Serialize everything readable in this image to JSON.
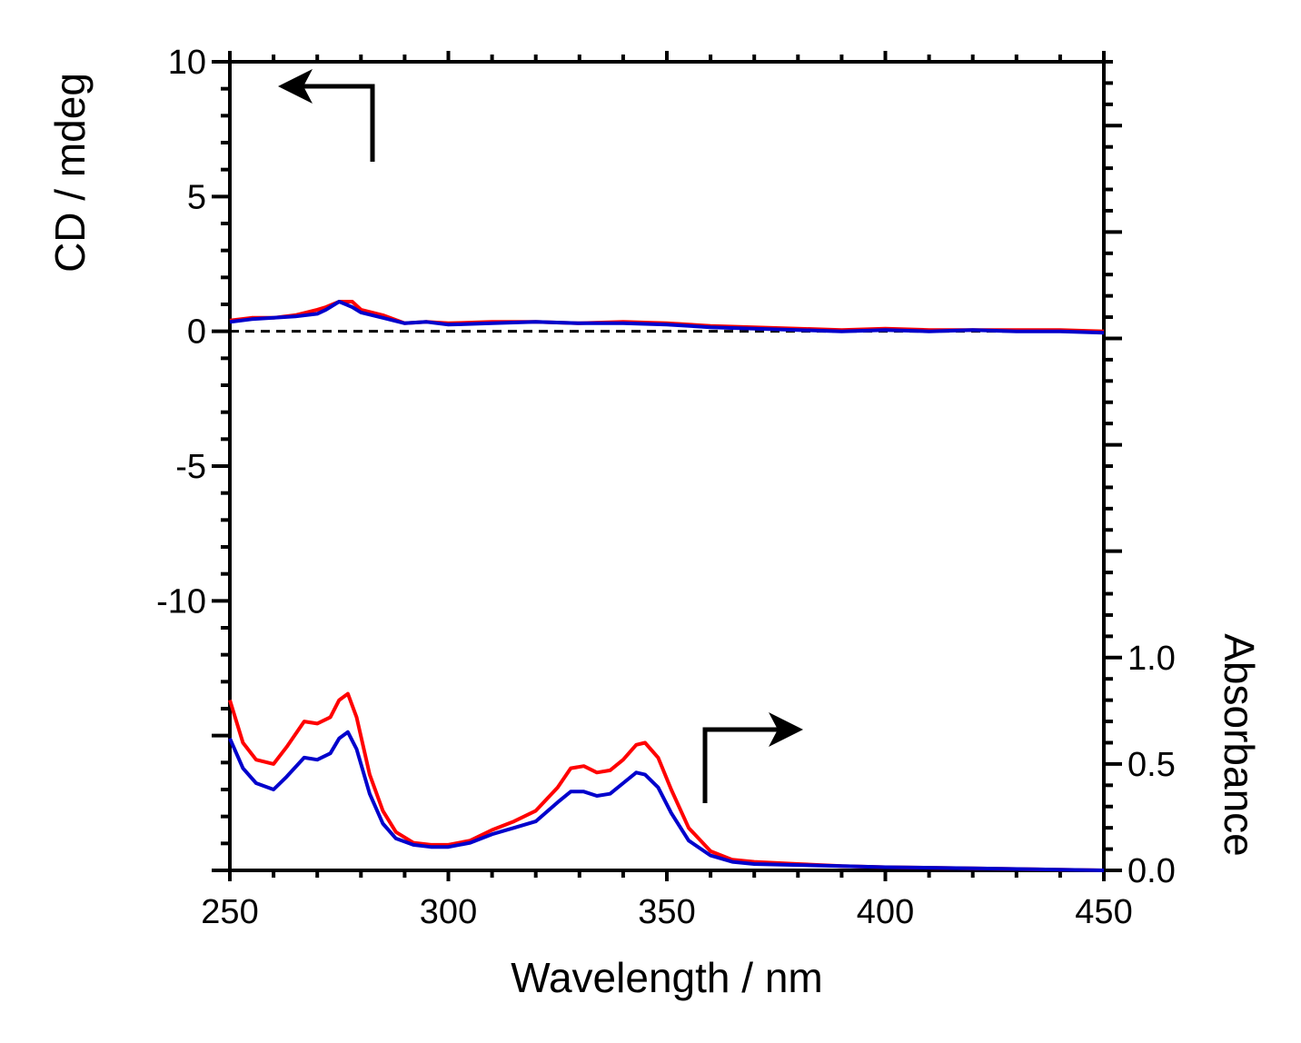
{
  "chart_data": {
    "type": "line",
    "title": "",
    "xlabel": "Wavelength / nm",
    "ylabel_left": "CD / mdeg",
    "ylabel_right": "Absorbance",
    "xlim": [
      250,
      450
    ],
    "xticks": [
      250,
      300,
      350,
      400,
      450
    ],
    "xtick_labels": [
      "250",
      "300",
      "350",
      "400",
      "450"
    ],
    "ylim_left": [
      -20,
      10
    ],
    "yticks_left": [
      10,
      5,
      0,
      -5,
      -10
    ],
    "ytick_labels_left": [
      "10",
      "5",
      "0",
      "-5",
      "-10"
    ],
    "ylim_right": [
      0.0,
      3.8
    ],
    "yticks_right": [
      1.0,
      0.5,
      0.0
    ],
    "ytick_labels_right": [
      "1.0",
      "0.5",
      "0.0"
    ],
    "zero_line": {
      "axis": "left",
      "value": 0,
      "style": "dashed"
    },
    "cd_series": [
      {
        "name": "CD red",
        "color": "#ff0000",
        "x": [
          250,
          255,
          260,
          265,
          270,
          272,
          275,
          278,
          280,
          285,
          290,
          295,
          300,
          310,
          320,
          330,
          340,
          350,
          360,
          370,
          380,
          390,
          400,
          410,
          420,
          430,
          440,
          450
        ],
        "y": [
          0.4,
          0.5,
          0.5,
          0.6,
          0.8,
          0.9,
          1.1,
          1.1,
          0.8,
          0.6,
          0.3,
          0.35,
          0.3,
          0.35,
          0.35,
          0.3,
          0.35,
          0.3,
          0.2,
          0.15,
          0.1,
          0.05,
          0.1,
          0.05,
          0.05,
          0.05,
          0.05,
          0.0
        ]
      },
      {
        "name": "CD blue",
        "color": "#0000cc",
        "x": [
          250,
          255,
          260,
          265,
          270,
          272,
          275,
          278,
          280,
          285,
          290,
          295,
          300,
          310,
          320,
          330,
          340,
          350,
          360,
          370,
          380,
          390,
          400,
          410,
          420,
          430,
          440,
          450
        ],
        "y": [
          0.35,
          0.45,
          0.5,
          0.55,
          0.65,
          0.8,
          1.1,
          0.9,
          0.7,
          0.5,
          0.3,
          0.35,
          0.25,
          0.3,
          0.35,
          0.3,
          0.3,
          0.25,
          0.15,
          0.1,
          0.05,
          0.0,
          0.05,
          0.0,
          0.05,
          0.0,
          0.0,
          -0.05
        ]
      }
    ],
    "abs_series": [
      {
        "name": "Absorbance red",
        "color": "#ff0000",
        "x": [
          250,
          253,
          256,
          260,
          263,
          267,
          270,
          273,
          275,
          277,
          279,
          282,
          285,
          288,
          292,
          296,
          300,
          305,
          310,
          315,
          320,
          325,
          328,
          331,
          334,
          337,
          340,
          343,
          345,
          348,
          351,
          355,
          360,
          365,
          370,
          380,
          390,
          400,
          420,
          450
        ],
        "y": [
          0.8,
          0.6,
          0.52,
          0.5,
          0.58,
          0.7,
          0.69,
          0.72,
          0.8,
          0.83,
          0.72,
          0.45,
          0.28,
          0.18,
          0.13,
          0.12,
          0.12,
          0.14,
          0.19,
          0.23,
          0.28,
          0.39,
          0.48,
          0.49,
          0.46,
          0.47,
          0.52,
          0.59,
          0.6,
          0.53,
          0.38,
          0.2,
          0.09,
          0.05,
          0.04,
          0.03,
          0.02,
          0.015,
          0.01,
          0.0
        ]
      },
      {
        "name": "Absorbance blue",
        "color": "#0000cc",
        "x": [
          250,
          253,
          256,
          260,
          263,
          267,
          270,
          273,
          275,
          277,
          279,
          282,
          285,
          288,
          292,
          296,
          300,
          305,
          310,
          315,
          320,
          325,
          328,
          331,
          334,
          337,
          340,
          343,
          345,
          348,
          351,
          355,
          360,
          365,
          370,
          380,
          390,
          400,
          420,
          450
        ],
        "y": [
          0.62,
          0.48,
          0.41,
          0.38,
          0.44,
          0.53,
          0.52,
          0.55,
          0.62,
          0.65,
          0.57,
          0.36,
          0.22,
          0.15,
          0.12,
          0.11,
          0.11,
          0.13,
          0.17,
          0.2,
          0.23,
          0.32,
          0.37,
          0.37,
          0.35,
          0.36,
          0.41,
          0.46,
          0.45,
          0.39,
          0.27,
          0.14,
          0.07,
          0.04,
          0.03,
          0.025,
          0.02,
          0.015,
          0.01,
          0.0
        ]
      }
    ],
    "annotations": [
      {
        "label": "arrow pointing to left axis (CD)",
        "direction": "left"
      },
      {
        "label": "arrow pointing to right axis (Absorbance)",
        "direction": "right"
      }
    ]
  }
}
